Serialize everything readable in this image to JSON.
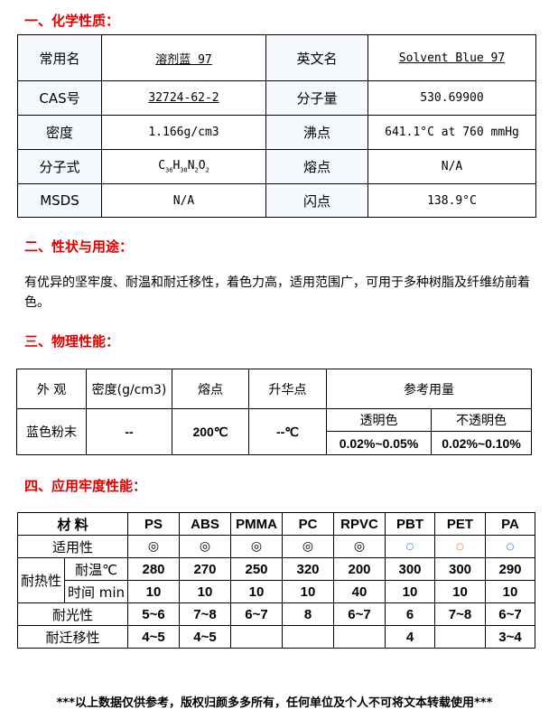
{
  "sections": {
    "s1": "一、化学性质：",
    "s2": "二、性状与用途：",
    "s3": "三、物理性能：",
    "s4": "四、应用牢度性能："
  },
  "chem": {
    "common_name_label": "常用名",
    "common_name": "溶剂蓝 97",
    "english_label": "英文名",
    "english": "Solvent Blue 97",
    "cas_label": "CAS号",
    "cas": "32724-62-2",
    "mw_label": "分子量",
    "mw": "530.69900",
    "density_label": "密度",
    "density": "1.166g/cm3",
    "bp_label": "沸点",
    "bp": "641.1°C at 760 mmHg",
    "formula_label": "分子式",
    "formula": {
      "c": "C",
      "cn": "36",
      "h": "H",
      "hn": "38",
      "n": "N",
      "nn": "2",
      "o": "O",
      "on": "2"
    },
    "mp_label": "熔点",
    "mp": "N/A",
    "msds_label": "MSDS",
    "msds": "N/A",
    "fp_label": "闪点",
    "fp": "138.9°C"
  },
  "usage": "有优异的坚牢度、耐温和耐迁移性，着色力高，适用范围广，可用于多种树脂及纤维纺前着色。",
  "physical": {
    "headers": [
      "外 观",
      "密度(g/cm3)",
      "熔点",
      "升华点",
      "参考用量"
    ],
    "appearance": "蓝色粉末",
    "density": "--",
    "melting": "200℃",
    "sublimation": "--℃",
    "transparent_label": "透明色",
    "opaque_label": "不透明色",
    "transparent": "0.02%~0.05%",
    "opaque": "0.02%~0.10%"
  },
  "fastness": {
    "material_label": "材 料",
    "materials": [
      "PS",
      "ABS",
      "PMMA",
      "PC",
      "RPVC",
      "PBT",
      "PET",
      "PA"
    ],
    "suitability_label": "适用性",
    "suitability": [
      "◎",
      "◎",
      "◎",
      "◎",
      "◎",
      "○",
      "○",
      "○"
    ],
    "suitability_colors": [
      "#000000",
      "#000000",
      "#000000",
      "#000000",
      "#000000",
      "#1f6fd0",
      "#e07020",
      "#1f6fd0"
    ],
    "heat_label": "耐热性",
    "temp_label": "耐温℃",
    "temps": [
      "280",
      "270",
      "250",
      "320",
      "200",
      "300",
      "300",
      "290"
    ],
    "time_label": "时间 min",
    "times": [
      "10",
      "10",
      "10",
      "10",
      "40",
      "10",
      "10",
      "10"
    ],
    "light_label": "耐光性",
    "light": [
      "5~6",
      "7~8",
      "6~7",
      "8",
      "6~7",
      "6",
      "7~8",
      "6~7"
    ],
    "migration_label": "耐迁移性",
    "migration": [
      "4~5",
      "4~5",
      "",
      "",
      "",
      "4",
      "",
      "3~4"
    ]
  },
  "footer": "***以上数据仅供参考，版权归颜多多所有，任何单位及个人不可将文本转载使用***"
}
